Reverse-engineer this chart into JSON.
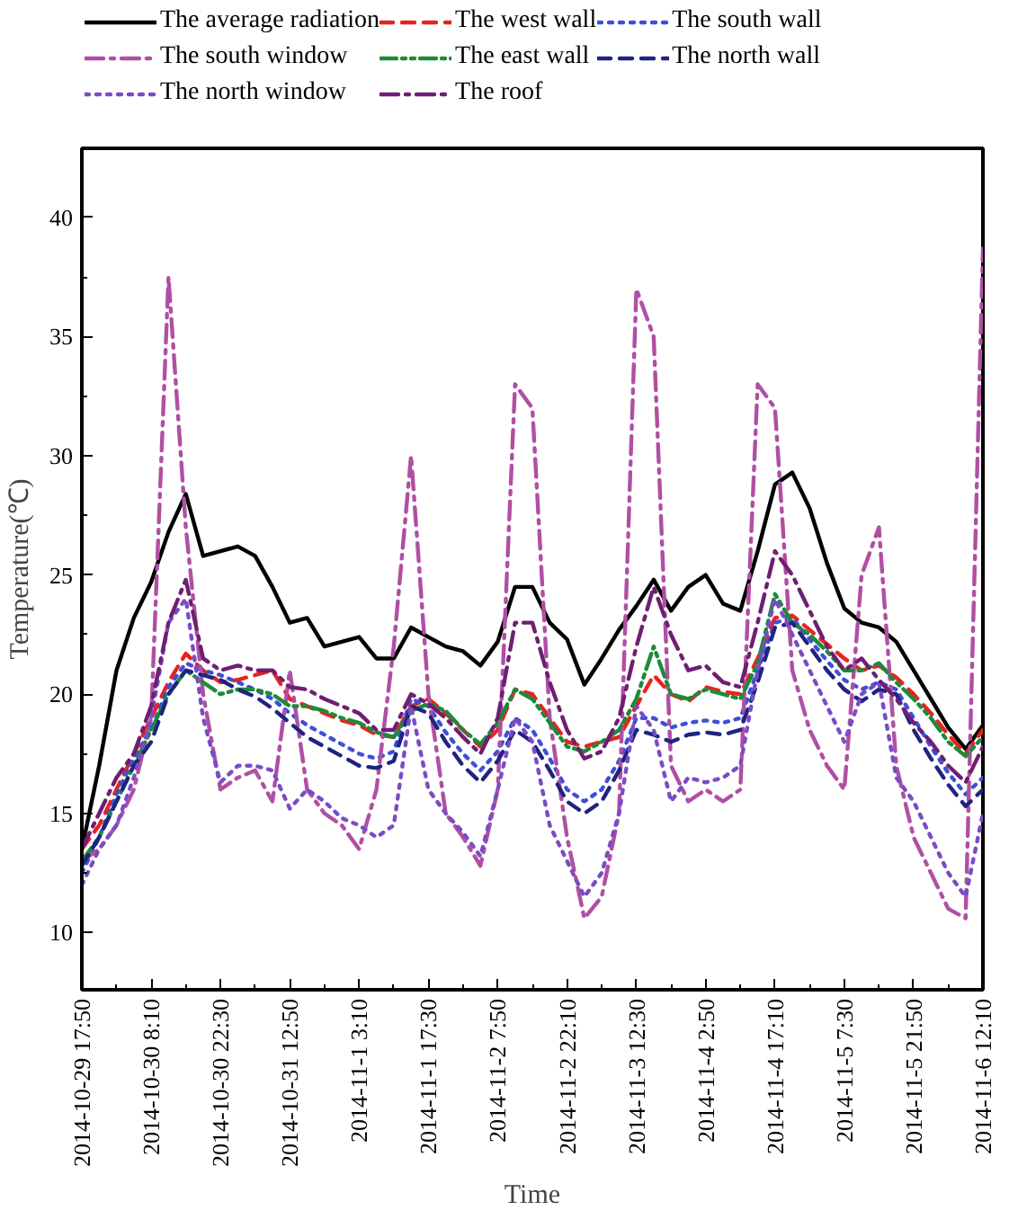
{
  "chart_data": {
    "type": "line",
    "xlabel": "Time",
    "ylabel": "Temperature(℃)",
    "x": [
      "2014-10-29T17:50",
      "2014-10-29T21:25",
      "2014-10-30T01:00",
      "2014-10-30T04:35",
      "2014-10-30T08:10",
      "2014-10-30T11:45",
      "2014-10-30T15:20",
      "2014-10-30T18:55",
      "2014-10-30T22:30",
      "2014-10-31T02:05",
      "2014-10-31T05:40",
      "2014-10-31T09:15",
      "2014-10-31T12:50",
      "2014-10-31T16:25",
      "2014-10-31T20:00",
      "2014-10-31T23:35",
      "2014-11-01T03:10",
      "2014-11-01T06:45",
      "2014-11-01T10:20",
      "2014-11-01T13:55",
      "2014-11-01T17:30",
      "2014-11-01T21:05",
      "2014-11-02T00:40",
      "2014-11-02T04:15",
      "2014-11-02T07:50",
      "2014-11-02T11:25",
      "2014-11-02T15:00",
      "2014-11-02T18:35",
      "2014-11-02T22:10",
      "2014-11-03T01:45",
      "2014-11-03T05:20",
      "2014-11-03T08:55",
      "2014-11-03T12:30",
      "2014-11-03T16:05",
      "2014-11-03T19:40",
      "2014-11-03T23:15",
      "2014-11-04T02:50",
      "2014-11-04T06:25",
      "2014-11-04T10:00",
      "2014-11-04T13:35",
      "2014-11-04T17:10",
      "2014-11-04T20:45",
      "2014-11-05T00:20",
      "2014-11-05T03:55",
      "2014-11-05T07:30",
      "2014-11-05T11:05",
      "2014-11-05T14:40",
      "2014-11-05T18:15",
      "2014-11-05T21:50",
      "2014-11-06T01:25",
      "2014-11-06T05:00",
      "2014-11-06T08:35",
      "2014-11-06T12:10"
    ],
    "series": [
      {
        "name": "The average radiation",
        "color": "#000000",
        "line_style": "solid",
        "values": [
          13.5,
          17,
          21,
          23.2,
          24.7,
          26.8,
          28.4,
          25.8,
          26,
          26.2,
          25.8,
          24.5,
          23,
          23.2,
          22,
          22.2,
          22.4,
          21.5,
          21.5,
          22.8,
          22.4,
          22,
          21.8,
          21.2,
          22.2,
          24.5,
          24.5,
          23,
          22.3,
          20.4,
          21.5,
          22.7,
          23.7,
          24.8,
          23.5,
          24.5,
          25,
          23.8,
          23.5,
          26,
          28.8,
          29.3,
          27.8,
          25.5,
          23.6,
          23,
          22.8,
          22.2,
          21,
          19.8,
          18.6,
          17.7,
          18.7
        ]
      },
      {
        "name": "The west wall",
        "color": "#e8231f",
        "line_style": "dashed",
        "values": [
          13.5,
          14.5,
          16,
          17.5,
          19,
          20.5,
          21.7,
          21,
          20.5,
          20.6,
          20.8,
          21,
          19.8,
          19.5,
          19.2,
          18.9,
          18.7,
          18.3,
          18.2,
          19.5,
          19.8,
          19.2,
          18.5,
          17.8,
          18.5,
          20.2,
          20,
          19,
          18,
          17.8,
          18,
          18.2,
          19.5,
          20.8,
          20,
          19.7,
          20.3,
          20.1,
          20,
          21.5,
          23.2,
          23.3,
          22.7,
          22.1,
          21.5,
          21,
          21.2,
          20.7,
          20,
          19.2,
          18.3,
          17.5,
          18.5
        ]
      },
      {
        "name": "The south wall",
        "color": "#3d4fd6",
        "line_style": "dotted",
        "values": [
          12.5,
          14,
          15.8,
          17.3,
          18.5,
          20.3,
          21.3,
          21,
          20.8,
          20.5,
          20.2,
          19.8,
          19.2,
          18.7,
          18.3,
          17.9,
          17.5,
          17.3,
          17.6,
          19.8,
          19.5,
          18.4,
          17.5,
          16.8,
          17.6,
          19,
          18.5,
          17.3,
          16,
          15.5,
          16,
          17.2,
          19,
          19,
          18.6,
          18.8,
          18.9,
          18.8,
          19,
          21,
          23,
          23.2,
          22.3,
          21.4,
          20.6,
          20.2,
          20.5,
          20.2,
          19,
          17.8,
          16.7,
          15.8,
          16.5
        ]
      },
      {
        "name": "The south window",
        "color": "#b04fa4",
        "line_style": "dashdot",
        "values": [
          13,
          13.5,
          14.5,
          16,
          19,
          37.5,
          27,
          20,
          16,
          16.5,
          16.8,
          15.5,
          21,
          16,
          15,
          14.5,
          13.5,
          16,
          22,
          30,
          20,
          15,
          14,
          12.8,
          16,
          33,
          32,
          19,
          14,
          10.6,
          11.5,
          15,
          37,
          35,
          17,
          15.5,
          16,
          15.5,
          16,
          33,
          32,
          21,
          18.5,
          17,
          16,
          25,
          27,
          17,
          14,
          12.5,
          11,
          10.6,
          38.7
        ]
      },
      {
        "name": "The east wall",
        "color": "#1d8a3a",
        "line_style": "dashdotdot",
        "values": [
          13,
          14,
          15.5,
          17,
          18.5,
          20,
          21,
          20.5,
          20,
          20.2,
          20.2,
          20,
          19.5,
          19.5,
          19.3,
          19,
          18.8,
          18.4,
          18.2,
          19.3,
          19.6,
          19.3,
          18.5,
          17.9,
          18.8,
          20.2,
          19.8,
          18.8,
          17.8,
          17.6,
          18,
          18.5,
          19.8,
          22,
          20,
          19.8,
          20.2,
          20,
          19.8,
          21.3,
          24.2,
          23,
          22.5,
          21.8,
          21,
          21,
          21.3,
          20.5,
          19.8,
          19,
          18,
          17.4,
          18.2
        ]
      },
      {
        "name": "The north wall",
        "color": "#1f2480",
        "line_style": "dashed",
        "values": [
          12.8,
          14,
          15.5,
          17,
          18,
          20,
          21,
          20.8,
          20.6,
          20.2,
          19.9,
          19.4,
          18.8,
          18.2,
          17.8,
          17.4,
          17,
          16.9,
          17.2,
          19.5,
          19.2,
          18,
          17,
          16.3,
          17.2,
          18.5,
          18,
          16.8,
          15.5,
          15,
          15.5,
          16.8,
          18.5,
          18.3,
          18,
          18.3,
          18.4,
          18.3,
          18.5,
          20.5,
          22.8,
          23,
          22,
          21,
          20.2,
          19.7,
          20.2,
          20,
          18.5,
          17.3,
          16.2,
          15.3,
          16
        ]
      },
      {
        "name": "The north window",
        "color": "#7a4cc4",
        "line_style": "dotted",
        "values": [
          12,
          13.5,
          14.5,
          16.5,
          19,
          23,
          24,
          19,
          16.3,
          17,
          17,
          16.8,
          15.2,
          16,
          15.5,
          14.8,
          14.5,
          14,
          14.5,
          19.5,
          16,
          15,
          14.2,
          13.2,
          16,
          19,
          18,
          14.5,
          13,
          11.5,
          12.5,
          15,
          19.5,
          18.5,
          15.5,
          16.5,
          16.3,
          16.5,
          17,
          21,
          24,
          22.5,
          21,
          19.5,
          18,
          20,
          20.5,
          16.5,
          15.5,
          14,
          12.5,
          11.5,
          15
        ]
      },
      {
        "name": "The roof",
        "color": "#6e1f72",
        "line_style": "dashdot",
        "values": [
          13.5,
          15,
          16.5,
          17.5,
          19.5,
          23,
          24.8,
          21.5,
          21,
          21.2,
          21,
          21,
          20.3,
          20.2,
          19.8,
          19.5,
          19.2,
          18.5,
          18.5,
          20,
          19.6,
          19,
          18.2,
          17.5,
          19,
          23,
          23,
          20.5,
          18.5,
          17.3,
          17.6,
          19,
          22,
          24.5,
          22.5,
          21,
          21.2,
          20.5,
          20.3,
          23,
          26,
          25,
          23.5,
          22,
          21,
          21.5,
          20.6,
          19.8,
          18.8,
          18,
          17,
          16.3,
          17.8
        ]
      }
    ],
    "xlim": [
      "2014-10-29T17:50",
      "2014-11-06T12:10"
    ],
    "xticks": [
      {
        "value": "2014-10-29T17:50",
        "label": "2014-10-29 17:50"
      },
      {
        "value": "2014-10-30T08:10",
        "label": "2014-10-30 8:10"
      },
      {
        "value": "2014-10-30T22:30",
        "label": "2014-10-30 22:30"
      },
      {
        "value": "2014-10-31T12:50",
        "label": "2014-10-31 12:50"
      },
      {
        "value": "2014-11-01T03:10",
        "label": "2014-11-1 3:10"
      },
      {
        "value": "2014-11-01T17:30",
        "label": "2014-11-1 17:30"
      },
      {
        "value": "2014-11-02T07:50",
        "label": "2014-11-2 7:50"
      },
      {
        "value": "2014-11-02T22:10",
        "label": "2014-11-2 22:10"
      },
      {
        "value": "2014-11-03T12:30",
        "label": "2014-11-3 12:30"
      },
      {
        "value": "2014-11-04T02:50",
        "label": "2014-11-4 2:50"
      },
      {
        "value": "2014-11-04T17:10",
        "label": "2014-11-4 17:10"
      },
      {
        "value": "2014-11-05T07:30",
        "label": "2014-11-5 7:30"
      },
      {
        "value": "2014-11-05T21:50",
        "label": "2014-11-5 21:50"
      },
      {
        "value": "2014-11-06T12:10",
        "label": "2014-11-6 12:10"
      }
    ],
    "ylim": [
      7.6,
      42.9
    ],
    "yticks": [
      10,
      15,
      20,
      25,
      30,
      35,
      40
    ],
    "grid": false,
    "legend": "top"
  }
}
